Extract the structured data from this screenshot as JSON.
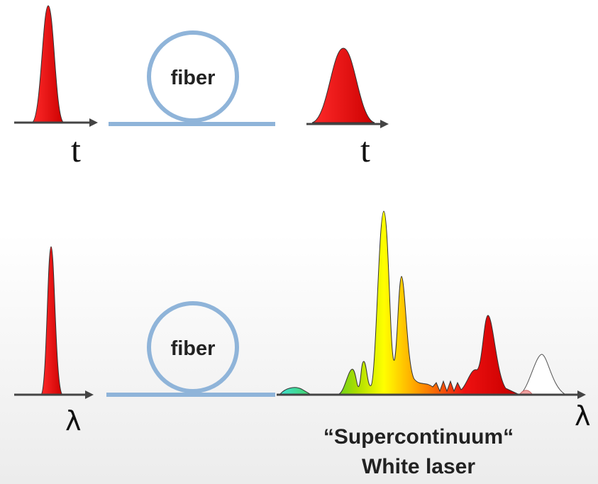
{
  "top_row": {
    "fiber_label": "fiber",
    "input_axis_label": "t",
    "output_axis_label": "t"
  },
  "bottom_row": {
    "fiber_label": "fiber",
    "input_axis_label": "λ",
    "output_axis_label": "λ",
    "caption": [
      "“Supercontinuum“",
      "White laser"
    ]
  }
}
